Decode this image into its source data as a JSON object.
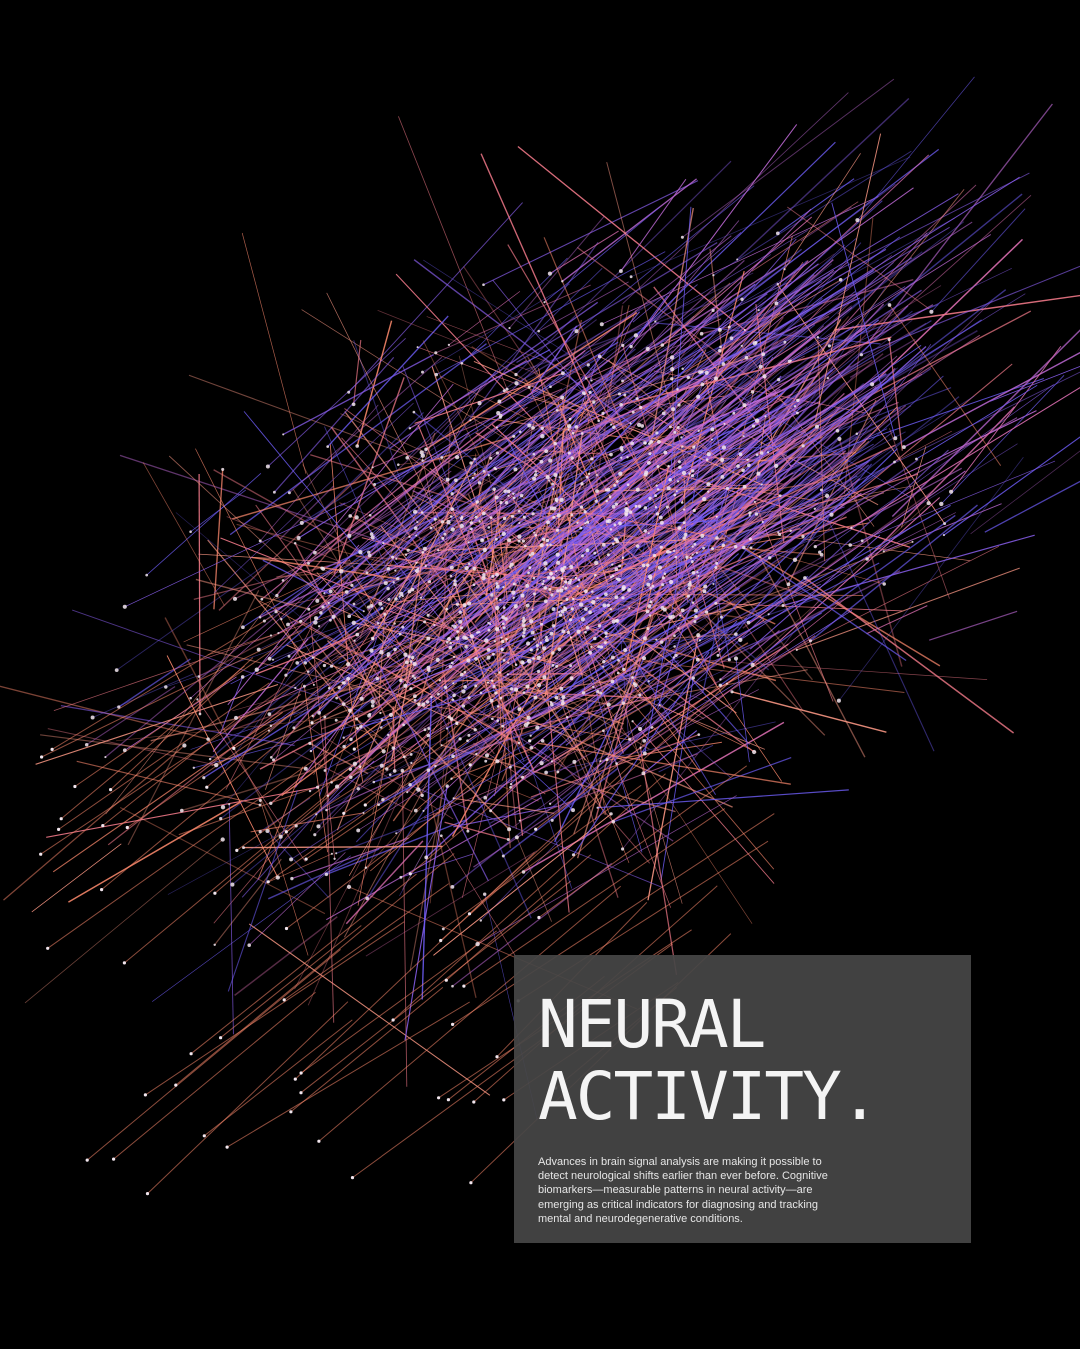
{
  "poster": {
    "headline_line1": "NEURAL",
    "headline_line2": "ACTIVITY.",
    "body": "Advances in brain signal analysis are making it possible to detect neurological shifts earlier than ever before. Cognitive biomarkers—measurable patterns in neural activity—are emerging as critical indicators for diagnosing and tracking mental and neurodegenerative conditions."
  },
  "artwork": {
    "background_color": "#000000",
    "line_colors": [
      "#ff8a6e",
      "#ff9a86",
      "#f47a8a",
      "#e070b4",
      "#c06ad8",
      "#8a5ff0",
      "#6d5cf5"
    ],
    "node_color": "#f2e6ee",
    "panel_color": "#464646"
  }
}
